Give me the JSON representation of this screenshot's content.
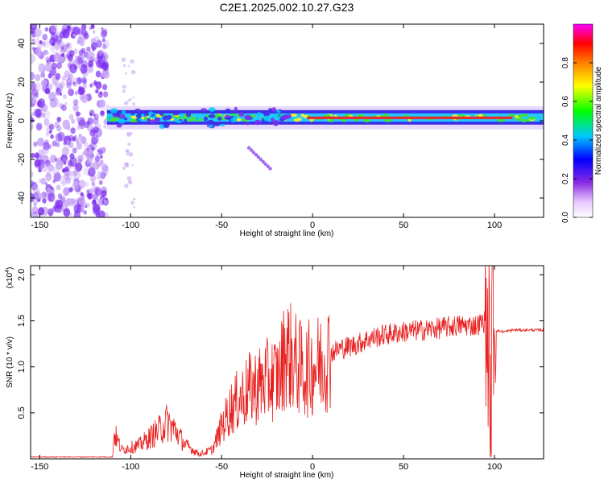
{
  "title": "C2E1.2025.002.10.27.G23",
  "colors": {
    "line": "#e8201e",
    "scatter": "#7a2cf0",
    "band_core": "#e03030",
    "band_mid": "#22c8ff",
    "band_green": "#40e040"
  },
  "chart_data": [
    {
      "type": "heatmap",
      "xlabel": "Height of straight line (km)",
      "ylabel": "Frequency (Hz)",
      "xlim": [
        -155,
        127
      ],
      "ylim": [
        -50,
        50
      ],
      "xticks": [
        -150,
        -100,
        -50,
        0,
        50,
        100
      ],
      "yticks": [
        -40,
        -20,
        0,
        20,
        40
      ],
      "colorbar": {
        "label": "Normalized spectral amplitude",
        "range": [
          0,
          1
        ],
        "ticks": [
          "0.0",
          "0.2",
          "0.4",
          "0.6",
          "0.8"
        ],
        "colormap": "rainbow (white-violet-blue-cyan-green-yellow-orange-red-magenta)"
      },
      "features": [
        {
          "desc": "noise",
          "x_range": [
            -155,
            -113
          ],
          "y_range": [
            -50,
            50
          ]
        },
        {
          "desc": "band",
          "x_range": [
            -113,
            127
          ],
          "center_freq_hz": 1.5
        }
      ]
    },
    {
      "type": "line",
      "xlabel": "Height of straight line (km)",
      "ylabel": "SNR (10 * v/v)",
      "y_multiplier": "(x10",
      "y_multiplier_exp": "4",
      "xlim": [
        -155,
        127
      ],
      "ylim": [
        0,
        2.1
      ],
      "xticks": [
        -150,
        -100,
        -50,
        0,
        50,
        100
      ],
      "yticks": [
        "0.5",
        "1.0",
        "1.5",
        "2.0"
      ],
      "series": [
        {
          "x": [
            -155,
            -110,
            -109,
            -105,
            -95,
            -85,
            -80,
            -75,
            -70,
            -62,
            -55,
            -50,
            -45,
            -40,
            -35,
            -30,
            -25,
            -18,
            -15,
            -10,
            -5,
            0,
            5,
            10,
            15,
            20,
            25,
            30,
            40,
            50,
            60,
            70,
            80,
            90,
            95,
            97,
            98,
            99,
            100,
            105,
            110,
            115,
            120,
            127
          ],
          "y": [
            0.02,
            0.02,
            0.28,
            0.1,
            0.15,
            0.3,
            0.4,
            0.3,
            0.15,
            0.05,
            0.1,
            0.35,
            0.55,
            0.65,
            0.75,
            0.8,
            0.85,
            0.9,
            1.2,
            1.05,
            0.95,
            1.0,
            1.05,
            1.15,
            1.2,
            1.22,
            1.25,
            1.3,
            1.35,
            1.38,
            1.4,
            1.42,
            1.45,
            1.45,
            1.5,
            1.2,
            0.3,
            1.8,
            1.4,
            1.38,
            1.4,
            1.4,
            1.4,
            1.4
          ]
        }
      ]
    }
  ]
}
